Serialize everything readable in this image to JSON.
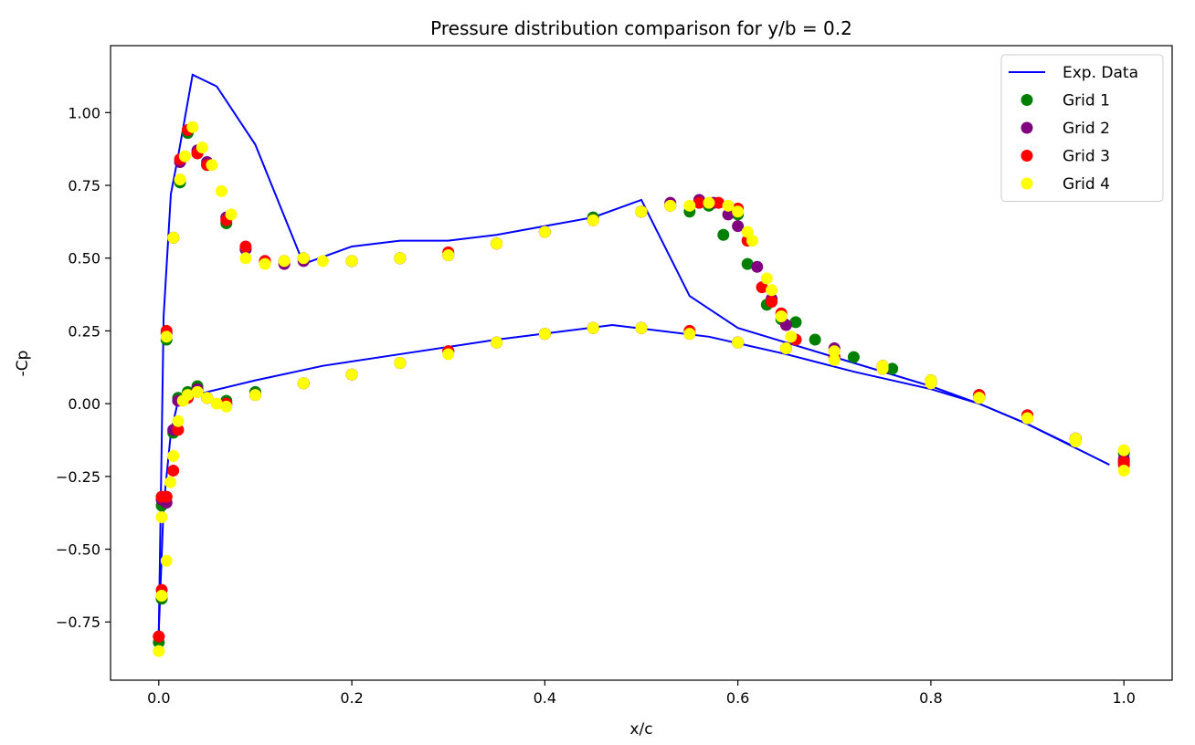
{
  "chart_data": {
    "type": "scatter",
    "title": "Pressure distribution comparison for y/b = 0.2",
    "xlabel": "x/c",
    "ylabel": "-Cp",
    "xlim": [
      -0.05,
      1.05
    ],
    "ylim": [
      -0.95,
      1.23
    ],
    "x_ticks": [
      0.0,
      0.2,
      0.4,
      0.6,
      0.8,
      1.0
    ],
    "x_tick_labels": [
      "0.0",
      "0.2",
      "0.4",
      "0.6",
      "0.8",
      "1.0"
    ],
    "y_ticks": [
      -0.75,
      -0.5,
      -0.25,
      0.0,
      0.25,
      0.5,
      0.75,
      1.0
    ],
    "y_tick_labels": [
      "−0.75",
      "−0.50",
      "−0.25",
      "0.00",
      "0.25",
      "0.50",
      "0.75",
      "1.00"
    ],
    "grid": false,
    "legend_position": "top-right",
    "line_series": {
      "name": "Exp. Data",
      "color": "#0000ff",
      "upper": {
        "x": [
          0.0,
          0.005,
          0.0125,
          0.02,
          0.035,
          0.06,
          0.1,
          0.15,
          0.2,
          0.25,
          0.3,
          0.35,
          0.4,
          0.45,
          0.5,
          0.55,
          0.6,
          0.65,
          0.7,
          0.8,
          0.85,
          0.9,
          0.95
        ],
        "y": [
          -0.78,
          0.3,
          0.72,
          0.85,
          1.13,
          1.09,
          0.89,
          0.48,
          0.54,
          0.56,
          0.56,
          0.58,
          0.61,
          0.64,
          0.7,
          0.37,
          0.26,
          0.21,
          0.16,
          0.06,
          0.0,
          -0.07,
          -0.15
        ]
      },
      "lower": {
        "x": [
          0.0,
          0.005,
          0.0125,
          0.02,
          0.05,
          0.1,
          0.17,
          0.25,
          0.35,
          0.47,
          0.57,
          0.65,
          0.72,
          0.8,
          0.85,
          0.9,
          0.985
        ],
        "y": [
          -0.78,
          -0.35,
          -0.1,
          0.01,
          0.04,
          0.08,
          0.13,
          0.17,
          0.22,
          0.27,
          0.23,
          0.17,
          0.11,
          0.05,
          0.0,
          -0.07,
          -0.21
        ]
      }
    },
    "scatter_series": [
      {
        "name": "Grid 1",
        "color": "#008000",
        "upper_x": [
          0.0,
          0.003,
          0.008,
          0.015,
          0.022,
          0.03,
          0.04,
          0.05,
          0.07,
          0.09,
          0.11,
          0.13,
          0.15,
          0.2,
          0.25,
          0.3,
          0.35,
          0.4,
          0.45,
          0.5,
          0.53,
          0.55,
          0.57,
          0.585,
          0.6,
          0.61,
          0.63,
          0.645,
          0.66,
          0.68,
          0.72,
          0.76,
          0.8,
          0.85,
          0.9,
          0.95,
          1.0
        ],
        "upper_y": [
          -0.82,
          -0.35,
          0.22,
          0.57,
          0.76,
          0.93,
          0.86,
          0.82,
          0.62,
          0.53,
          0.49,
          0.49,
          0.5,
          0.49,
          0.5,
          0.51,
          0.55,
          0.59,
          0.64,
          0.66,
          0.68,
          0.66,
          0.68,
          0.58,
          0.65,
          0.48,
          0.34,
          0.29,
          0.28,
          0.22,
          0.16,
          0.12,
          0.08,
          0.02,
          -0.05,
          -0.12,
          -0.17
        ],
        "lower_x": [
          0.003,
          0.008,
          0.015,
          0.02,
          0.03,
          0.04,
          0.05,
          0.07,
          0.1,
          0.15,
          0.2,
          0.25,
          0.3,
          0.35,
          0.4,
          0.45,
          0.5,
          0.55,
          0.6,
          0.65,
          0.7,
          0.75,
          0.8,
          0.85,
          0.9,
          0.95,
          1.0
        ],
        "lower_y": [
          -0.67,
          -0.32,
          -0.1,
          0.02,
          0.04,
          0.06,
          0.02,
          0.01,
          0.04,
          0.07,
          0.1,
          0.14,
          0.18,
          0.21,
          0.24,
          0.26,
          0.26,
          0.24,
          0.21,
          0.19,
          0.16,
          0.12,
          0.07,
          0.03,
          -0.04,
          -0.12,
          -0.2
        ]
      },
      {
        "name": "Grid 2",
        "color": "#800080",
        "upper_x": [
          0.0,
          0.003,
          0.008,
          0.015,
          0.022,
          0.03,
          0.04,
          0.05,
          0.07,
          0.09,
          0.11,
          0.13,
          0.15,
          0.2,
          0.25,
          0.3,
          0.35,
          0.4,
          0.45,
          0.5,
          0.53,
          0.56,
          0.575,
          0.59,
          0.6,
          0.62,
          0.635,
          0.65,
          0.7,
          0.75,
          0.8,
          0.85,
          0.9,
          0.95,
          1.0
        ],
        "upper_y": [
          -0.8,
          -0.33,
          0.24,
          0.57,
          0.83,
          0.94,
          0.87,
          0.83,
          0.64,
          0.53,
          0.49,
          0.48,
          0.49,
          0.49,
          0.5,
          0.51,
          0.55,
          0.59,
          0.63,
          0.66,
          0.69,
          0.7,
          0.69,
          0.65,
          0.61,
          0.47,
          0.36,
          0.27,
          0.19,
          0.13,
          0.08,
          0.02,
          -0.05,
          -0.12,
          -0.19
        ],
        "lower_x": [
          0.003,
          0.008,
          0.015,
          0.02,
          0.03,
          0.04,
          0.05,
          0.07,
          0.1,
          0.15,
          0.2,
          0.25,
          0.3,
          0.35,
          0.4,
          0.45,
          0.5,
          0.55,
          0.6,
          0.65,
          0.7,
          0.75,
          0.8,
          0.85,
          0.9,
          0.95,
          1.0
        ],
        "lower_y": [
          -0.66,
          -0.34,
          -0.09,
          0.01,
          0.03,
          0.05,
          0.02,
          0.0,
          0.03,
          0.07,
          0.1,
          0.14,
          0.18,
          0.21,
          0.24,
          0.26,
          0.26,
          0.24,
          0.21,
          0.19,
          0.16,
          0.12,
          0.07,
          0.03,
          -0.04,
          -0.12,
          -0.2
        ]
      },
      {
        "name": "Grid 3",
        "color": "#ff0000",
        "upper_x": [
          0.0,
          0.003,
          0.008,
          0.015,
          0.022,
          0.03,
          0.04,
          0.05,
          0.07,
          0.09,
          0.11,
          0.13,
          0.15,
          0.2,
          0.25,
          0.3,
          0.35,
          0.4,
          0.45,
          0.5,
          0.53,
          0.56,
          0.58,
          0.6,
          0.61,
          0.625,
          0.635,
          0.645,
          0.66,
          0.7,
          0.75,
          0.8,
          0.85,
          0.9,
          0.95,
          1.0
        ],
        "upper_y": [
          -0.8,
          -0.32,
          0.25,
          0.57,
          0.84,
          0.94,
          0.86,
          0.82,
          0.63,
          0.54,
          0.49,
          0.49,
          0.5,
          0.49,
          0.5,
          0.52,
          0.55,
          0.59,
          0.63,
          0.66,
          0.68,
          0.69,
          0.69,
          0.67,
          0.56,
          0.4,
          0.35,
          0.31,
          0.22,
          0.18,
          0.13,
          0.08,
          0.02,
          -0.05,
          -0.12,
          -0.2
        ],
        "lower_x": [
          0.003,
          0.008,
          0.015,
          0.02,
          0.03,
          0.04,
          0.05,
          0.07,
          0.1,
          0.15,
          0.2,
          0.25,
          0.3,
          0.35,
          0.4,
          0.45,
          0.5,
          0.55,
          0.6,
          0.65,
          0.7,
          0.75,
          0.8,
          0.85,
          0.9,
          0.95,
          1.0
        ],
        "lower_y": [
          -0.64,
          -0.32,
          -0.23,
          -0.09,
          0.02,
          0.04,
          0.02,
          0.0,
          0.03,
          0.07,
          0.1,
          0.14,
          0.18,
          0.21,
          0.24,
          0.26,
          0.26,
          0.25,
          0.21,
          0.19,
          0.16,
          0.12,
          0.07,
          0.03,
          -0.04,
          -0.12,
          -0.21
        ]
      },
      {
        "name": "Grid 4",
        "color": "#ffff00",
        "upper_x": [
          0.0,
          0.003,
          0.008,
          0.015,
          0.022,
          0.027,
          0.035,
          0.045,
          0.055,
          0.065,
          0.075,
          0.09,
          0.11,
          0.13,
          0.15,
          0.17,
          0.2,
          0.25,
          0.3,
          0.35,
          0.4,
          0.45,
          0.5,
          0.53,
          0.55,
          0.57,
          0.59,
          0.6,
          0.61,
          0.615,
          0.63,
          0.635,
          0.645,
          0.655,
          0.7,
          0.75,
          0.8,
          0.85,
          0.9,
          0.95,
          1.0
        ],
        "upper_y": [
          -0.85,
          -0.39,
          0.23,
          0.57,
          0.77,
          0.85,
          0.95,
          0.88,
          0.82,
          0.73,
          0.65,
          0.5,
          0.48,
          0.49,
          0.5,
          0.49,
          0.49,
          0.5,
          0.51,
          0.55,
          0.59,
          0.63,
          0.66,
          0.68,
          0.68,
          0.69,
          0.68,
          0.66,
          0.59,
          0.56,
          0.43,
          0.39,
          0.3,
          0.23,
          0.18,
          0.13,
          0.08,
          0.02,
          -0.05,
          -0.12,
          -0.16
        ],
        "lower_x": [
          0.003,
          0.008,
          0.012,
          0.015,
          0.02,
          0.025,
          0.03,
          0.04,
          0.05,
          0.06,
          0.07,
          0.1,
          0.15,
          0.2,
          0.25,
          0.3,
          0.35,
          0.4,
          0.45,
          0.5,
          0.55,
          0.6,
          0.65,
          0.7,
          0.75,
          0.8,
          0.85,
          0.9,
          0.95,
          1.0
        ],
        "lower_y": [
          -0.66,
          -0.54,
          -0.27,
          -0.18,
          -0.06,
          0.01,
          0.03,
          0.04,
          0.02,
          0.0,
          -0.01,
          0.03,
          0.07,
          0.1,
          0.14,
          0.17,
          0.21,
          0.24,
          0.26,
          0.26,
          0.24,
          0.21,
          0.19,
          0.15,
          0.12,
          0.07,
          0.02,
          -0.05,
          -0.13,
          -0.23
        ]
      }
    ]
  }
}
